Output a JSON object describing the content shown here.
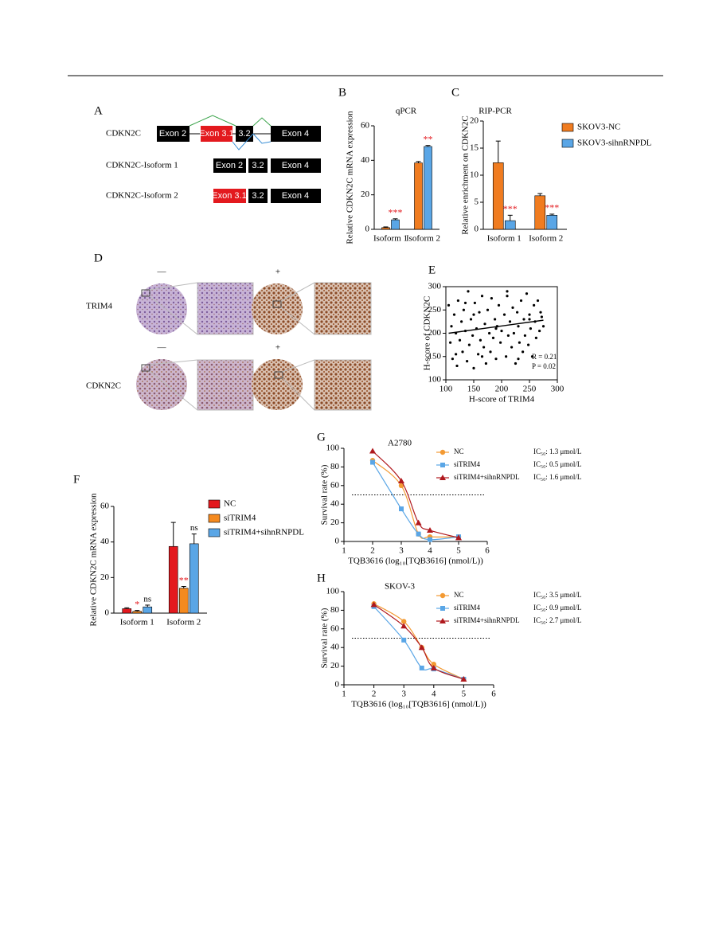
{
  "diagram": {
    "panel": "A",
    "gene": "CDKN2C",
    "exons": [
      "Exon 2",
      "Exon 3.1",
      "3.2",
      "Exon 4"
    ],
    "isoform1": {
      "label": "CDKN2C-Isoform 1",
      "exons": [
        "Exon 2",
        "3.2",
        "Exon 4"
      ]
    },
    "isoform2": {
      "label": "CDKN2C-Isoform 2",
      "exons": [
        "Exon 3.1",
        "3.2",
        "Exon 4"
      ]
    }
  },
  "ihc": {
    "panel": "D",
    "rows": [
      "TRIM4",
      "CDKN2C"
    ],
    "signs": [
      "—",
      "+"
    ]
  },
  "chart_data": [
    {
      "type": "bar",
      "panel": "B",
      "title": "qPCR",
      "ylabel": "Relative CDKN2C mRNA expression",
      "categories": [
        "Isoform 1",
        "Isoform 2"
      ],
      "ylim": [
        0,
        60
      ],
      "yticks": [
        0,
        20,
        40,
        60
      ],
      "series": [
        {
          "color": "#f07c20",
          "values": [
            1,
            38.5
          ],
          "errors": [
            0.4,
            0.8
          ]
        },
        {
          "color": "#5aa6e6",
          "values": [
            5.5,
            48
          ],
          "errors": [
            0.6,
            0.6
          ],
          "labels": [
            "***",
            "**"
          ]
        }
      ]
    },
    {
      "type": "bar",
      "panel": "C",
      "title": "RIP-PCR",
      "ylabel": "Relative enrichment on CDKN2C",
      "categories": [
        "Isoform 1",
        "Isoform 2"
      ],
      "ylim": [
        0,
        20
      ],
      "yticks": [
        0,
        5,
        10,
        15,
        20
      ],
      "series": [
        {
          "name": "SKOV3-NC",
          "color": "#f07c20",
          "values": [
            12.3,
            6.2
          ],
          "errors": [
            4,
            0.4
          ]
        },
        {
          "name": "SKOV3-sihnRNPDL",
          "color": "#5aa6e6",
          "values": [
            1.6,
            2.6
          ],
          "errors": [
            1,
            0.2
          ],
          "labels": [
            "***",
            "***"
          ]
        }
      ]
    },
    {
      "type": "scatter",
      "panel": "E",
      "xlabel": "H-score of TRIM4",
      "ylabel": "H-score of CDKN2C",
      "xlim": [
        100,
        300
      ],
      "xticks": [
        100,
        150,
        200,
        250,
        300
      ],
      "ylim": [
        100,
        300
      ],
      "yticks": [
        100,
        150,
        200,
        250,
        300
      ],
      "x": [
        105,
        108,
        110,
        112,
        115,
        118,
        120,
        122,
        125,
        128,
        130,
        132,
        135,
        138,
        140,
        142,
        145,
        148,
        150,
        152,
        155,
        158,
        160,
        162,
        165,
        168,
        170,
        172,
        175,
        178,
        180,
        182,
        185,
        188,
        190,
        192,
        195,
        198,
        200,
        205,
        208,
        210,
        212,
        215,
        218,
        220,
        222,
        225,
        228,
        230,
        232,
        235,
        238,
        240,
        242,
        245,
        248,
        250,
        252,
        255,
        258,
        260,
        262,
        265,
        268,
        270,
        272,
        275,
        118,
        135,
        150,
        165,
        190,
        210,
        230,
        250
      ],
      "y": [
        260,
        180,
        215,
        145,
        240,
        200,
        130,
        270,
        185,
        225,
        160,
        250,
        205,
        140,
        290,
        175,
        230,
        195,
        125,
        265,
        210,
        155,
        245,
        185,
        280,
        170,
        220,
        135,
        250,
        200,
        160,
        275,
        190,
        230,
        145,
        215,
        260,
        180,
        205,
        240,
        150,
        290,
        195,
        225,
        170,
        255,
        200,
        135,
        245,
        215,
        180,
        270,
        160,
        230,
        195,
        285,
        175,
        240,
        210,
        150,
        260,
        225,
        190,
        270,
        205,
        245,
        235,
        215,
        155,
        265,
        240,
        150,
        210,
        280,
        145,
        230
      ],
      "fit_line": {
        "x": [
          105,
          275
        ],
        "y": [
          200,
          228
        ]
      },
      "annotations": [
        "R = 0.21",
        "P = 0.02"
      ]
    },
    {
      "type": "bar",
      "panel": "F",
      "ylabel": "Relative CDKN2C mRNA expression",
      "categories": [
        "Isoform 1",
        "Isoform 2"
      ],
      "ylim": [
        0,
        60
      ],
      "yticks": [
        0,
        20,
        40,
        60
      ],
      "series": [
        {
          "name": "NC",
          "color": "#e3191e",
          "values": [
            2.5,
            37.5
          ],
          "errors": [
            0.5,
            13.5
          ]
        },
        {
          "name": "siTRIM4",
          "color": "#f58a1f",
          "values": [
            1,
            14
          ],
          "errors": [
            0.5,
            1
          ],
          "labels": [
            "*",
            "**"
          ]
        },
        {
          "name": "siTRIM4+sihnRNPDL",
          "color": "#5aa6e6",
          "values": [
            3.5,
            39
          ],
          "errors": [
            1,
            5.5
          ],
          "labels": [
            "ns",
            "ns"
          ]
        }
      ]
    },
    {
      "type": "line",
      "panel": "G",
      "title": "A2780",
      "xlabel": "TQB3616 (log₁₀[TQB3616] (nmol/L))",
      "ylabel": "Survival rate (%)",
      "xlim": [
        1,
        6
      ],
      "xticks": [
        1,
        2,
        3,
        4,
        5,
        6
      ],
      "ylim": [
        0,
        100
      ],
      "yticks": [
        0,
        20,
        40,
        60,
        80,
        100
      ],
      "reference_line": 50,
      "x": [
        2,
        3,
        3.6,
        4,
        5
      ],
      "series": [
        {
          "name": "NC",
          "color": "#f39a33",
          "marker": "circle",
          "values": [
            87,
            60,
            8,
            5,
            5
          ],
          "annotation": "IC₅₀: 1.3 μmol/L"
        },
        {
          "name": "siTRIM4",
          "color": "#5aa6e6",
          "marker": "square",
          "values": [
            85,
            35,
            8,
            2,
            5
          ],
          "annotation": "IC₅₀: 0.5 μmol/L"
        },
        {
          "name": "siTRIM4+sihnRNPDL",
          "color": "#b0191e",
          "marker": "triangle",
          "values": [
            97,
            65,
            20,
            12,
            4
          ],
          "annotation": "IC₅₀: 1.6 μmol/L"
        }
      ]
    },
    {
      "type": "line",
      "panel": "H",
      "title": "SKOV-3",
      "xlabel": "TQB3616 (log₁₀[TQB3616] (nmol/L))",
      "ylabel": "Survival rate (%)",
      "xlim": [
        1,
        6
      ],
      "xticks": [
        1,
        2,
        3,
        4,
        5,
        6
      ],
      "ylim": [
        0,
        100
      ],
      "yticks": [
        0,
        20,
        40,
        60,
        80,
        100
      ],
      "reference_line": 50,
      "x": [
        2,
        3,
        3.6,
        4,
        5
      ],
      "series": [
        {
          "name": "NC",
          "color": "#f39a33",
          "marker": "circle",
          "values": [
            87,
            68,
            40,
            22,
            6
          ],
          "annotation": "IC₅₀: 3.5 μmol/L"
        },
        {
          "name": "siTRIM4",
          "color": "#5aa6e6",
          "marker": "square",
          "values": [
            84,
            48,
            18,
            17,
            6
          ],
          "annotation": "IC₅₀: 0.9 μmol/L"
        },
        {
          "name": "siTRIM4+sihnRNPDL",
          "color": "#b0191e",
          "marker": "triangle",
          "values": [
            86,
            63,
            40,
            18,
            6
          ],
          "annotation": "IC₅₀: 2.7 μmol/L"
        }
      ]
    }
  ]
}
